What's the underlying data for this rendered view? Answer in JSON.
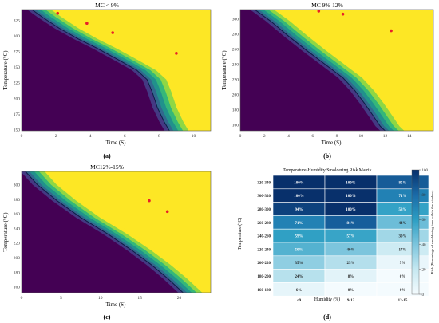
{
  "chart_data": [
    {
      "type": "heatmap",
      "panel_label": "(a)",
      "title": "MC < 9%",
      "xlabel": "Time (S)",
      "ylabel": "Temperature (°C)",
      "xlim": [
        0,
        11
      ],
      "ylim": [
        148,
        342
      ],
      "xticks": [
        "0",
        "2",
        "4",
        "6",
        "8",
        "10"
      ],
      "yticks": [
        "150",
        "175",
        "200",
        "225",
        "250",
        "275",
        "300",
        "325"
      ],
      "colormap": [
        "#440154",
        "#31688e",
        "#35b779",
        "#fde725"
      ],
      "boundary_curve": [
        [
          0.6,
          342
        ],
        [
          1.2,
          330
        ],
        [
          2.2,
          312
        ],
        [
          3.3,
          295
        ],
        [
          4.4,
          280
        ],
        [
          5.6,
          262
        ],
        [
          6.7,
          245
        ],
        [
          7.3,
          230
        ],
        [
          7.6,
          210
        ],
        [
          7.9,
          185
        ],
        [
          8.3,
          162
        ],
        [
          8.6,
          148
        ]
      ],
      "points": [
        [
          2.1,
          336
        ],
        [
          3.8,
          320
        ],
        [
          5.3,
          305
        ],
        [
          9.0,
          272
        ]
      ]
    },
    {
      "type": "heatmap",
      "panel_label": "(b)",
      "title": "MC 9%-12%",
      "xlabel": "Time (S)",
      "ylabel": "Temperature (°C)",
      "xlim": [
        0,
        16
      ],
      "ylim": [
        152,
        312
      ],
      "xticks": [
        "0",
        "2",
        "4",
        "6",
        "8",
        "10",
        "12",
        "14"
      ],
      "yticks": [
        "160",
        "180",
        "200",
        "220",
        "240",
        "260",
        "280",
        "300"
      ],
      "colormap": [
        "#440154",
        "#31688e",
        "#35b779",
        "#fde725"
      ],
      "boundary_curve": [
        [
          1.2,
          312
        ],
        [
          2.5,
          297
        ],
        [
          4.0,
          277
        ],
        [
          5.5,
          258
        ],
        [
          7.0,
          240
        ],
        [
          8.5,
          222
        ],
        [
          9.5,
          205
        ],
        [
          10.3,
          188
        ],
        [
          11.0,
          172
        ],
        [
          11.6,
          158
        ],
        [
          12.0,
          152
        ]
      ],
      "points": [
        [
          6.5,
          310
        ],
        [
          8.5,
          306
        ],
        [
          12.5,
          284
        ]
      ]
    },
    {
      "type": "heatmap",
      "panel_label": "(c)",
      "title": "MC12%-15%",
      "xlabel": "Time (S)",
      "ylabel": "Temperature (°C)",
      "xlim": [
        0,
        24
      ],
      "ylim": [
        152,
        318
      ],
      "xticks": [
        "0",
        "5",
        "10",
        "15",
        "20"
      ],
      "yticks": [
        "160",
        "180",
        "200",
        "220",
        "240",
        "260",
        "280",
        "300"
      ],
      "colormap": [
        "#440154",
        "#31688e",
        "#35b779",
        "#fde725"
      ],
      "boundary_curve": [
        [
          0.5,
          318
        ],
        [
          2.0,
          300
        ],
        [
          4.5,
          278
        ],
        [
          7.5,
          255
        ],
        [
          11.0,
          232
        ],
        [
          14.0,
          210
        ],
        [
          16.5,
          190
        ],
        [
          18.5,
          172
        ],
        [
          20.2,
          155
        ],
        [
          20.5,
          152
        ]
      ],
      "points": [
        [
          16.2,
          278
        ],
        [
          18.5,
          263
        ]
      ]
    },
    {
      "type": "heatmap",
      "panel_label": "(d)",
      "title": "Temperature-Humidity Smoldering Risk Matrix",
      "xlabel": "Humidity (%)",
      "ylabel": "Temperature (°C)",
      "colorbar_label": "Risk (Percentage of smoldering time within the window)",
      "colorbar_ticks": [
        "0",
        "20",
        "40",
        "60",
        "80",
        "100"
      ],
      "colorbar_range": [
        0,
        100
      ],
      "colormap": [
        "#f4fbfe",
        "#c6e8f1",
        "#7cc5dd",
        "#2c9ec3",
        "#1a6aa7",
        "#08306b"
      ],
      "x_categories": [
        "<9",
        "9-12",
        "12-15"
      ],
      "y_categories": [
        "320-340",
        "300-320",
        "280-300",
        "260-280",
        "240-260",
        "220-240",
        "200-220",
        "180-200",
        "160-180"
      ],
      "values": [
        [
          100,
          100,
          85
        ],
        [
          100,
          100,
          71
        ],
        [
          94,
          100,
          58
        ],
        [
          71,
          84,
          44
        ],
        [
          59,
          57,
          30
        ],
        [
          50,
          40,
          17
        ],
        [
          35,
          25,
          5
        ],
        [
          24,
          8,
          0
        ],
        [
          6,
          0,
          0
        ]
      ],
      "cell_labels": [
        [
          "100%",
          "100%",
          "85%"
        ],
        [
          "100%",
          "100%",
          "71%"
        ],
        [
          "94%",
          "100%",
          "58%"
        ],
        [
          "71%",
          "84%",
          "44%"
        ],
        [
          "59%",
          "57%",
          "30%"
        ],
        [
          "50%",
          "40%",
          "17%"
        ],
        [
          "35%",
          "25%",
          "5%"
        ],
        [
          "24%",
          "8%",
          "0%"
        ],
        [
          "6%",
          "0%",
          "0%"
        ]
      ]
    }
  ]
}
